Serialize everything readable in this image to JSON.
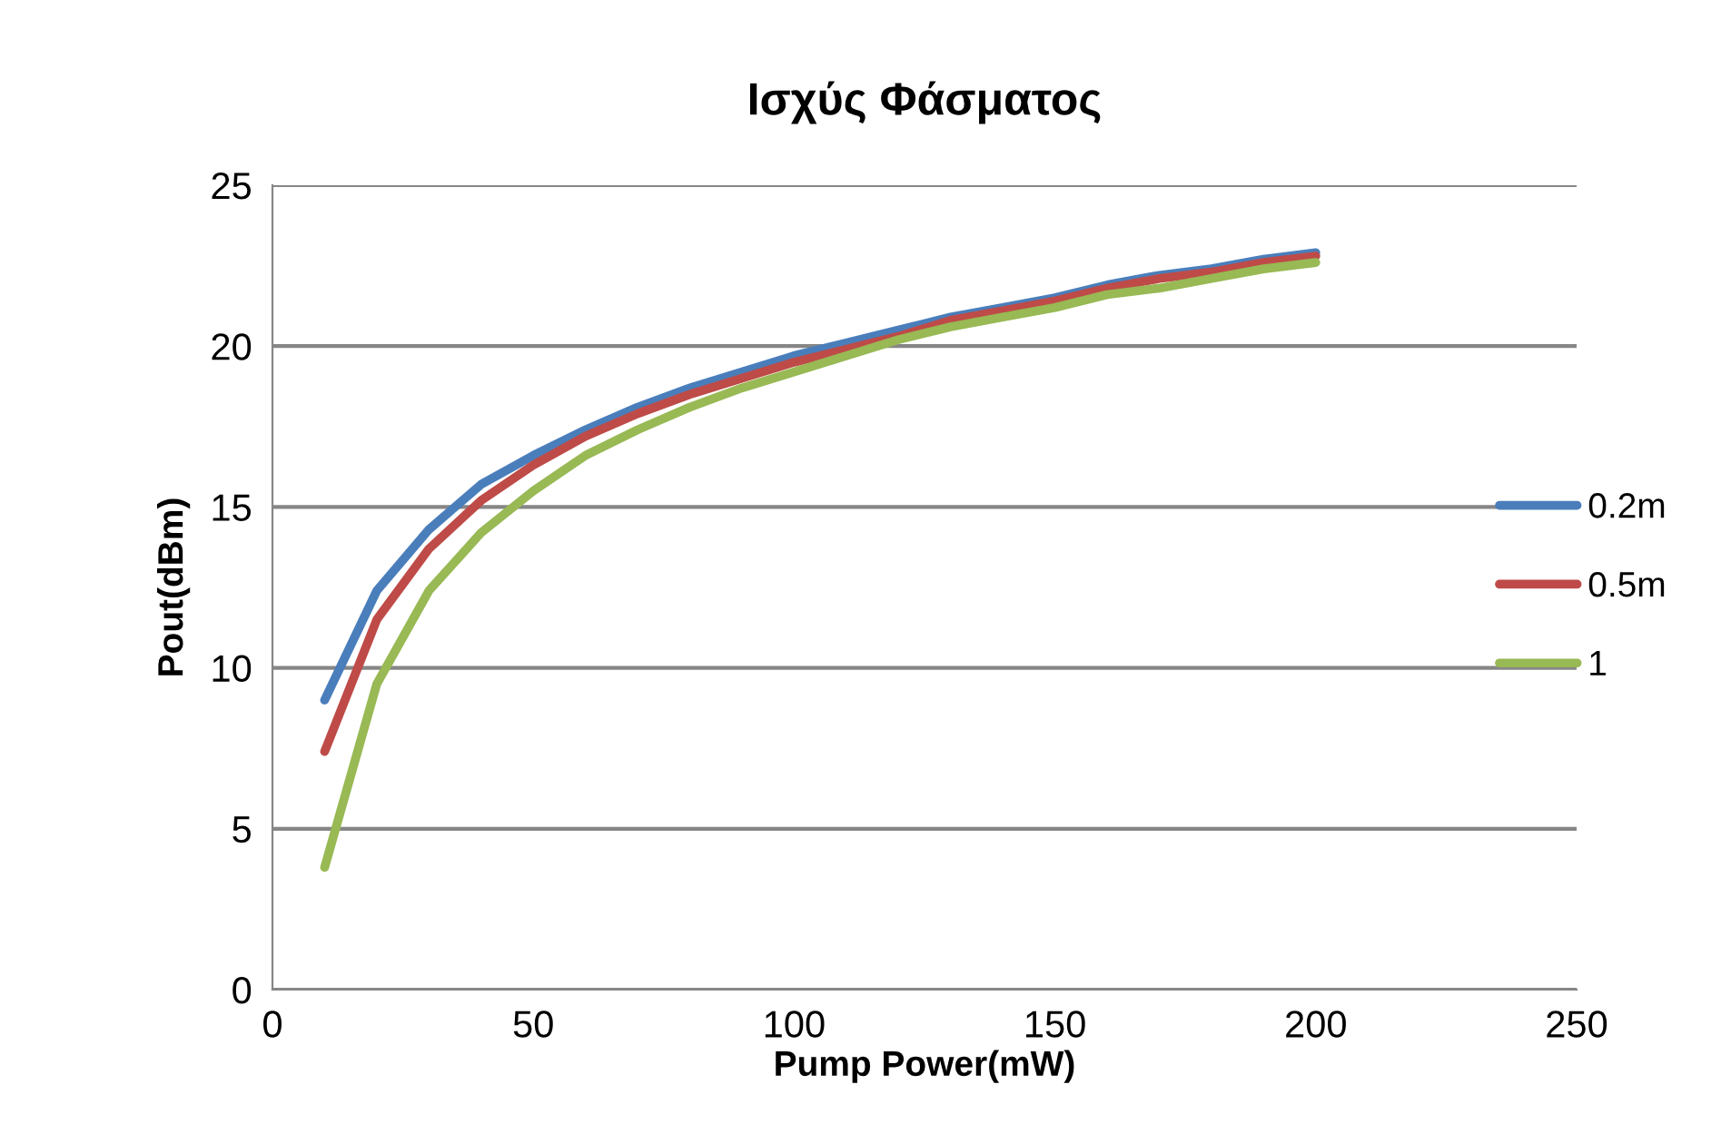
{
  "chart_data": {
    "type": "line",
    "title": "Ισχύς Φάσματος",
    "xlabel": "Pump Power(mW)",
    "ylabel": "Pout(dBm)",
    "x": [
      10,
      20,
      30,
      40,
      50,
      60,
      70,
      80,
      90,
      100,
      110,
      120,
      130,
      140,
      150,
      160,
      170,
      180,
      190,
      200
    ],
    "series": [
      {
        "name": "0.2m",
        "color": "#4a7ebb",
        "values": [
          9.0,
          12.4,
          14.3,
          15.7,
          16.6,
          17.4,
          18.1,
          18.7,
          19.2,
          19.7,
          20.1,
          20.5,
          20.9,
          21.2,
          21.5,
          21.9,
          22.2,
          22.4,
          22.7,
          22.9
        ]
      },
      {
        "name": "0.5m",
        "color": "#be4b48",
        "values": [
          7.4,
          11.5,
          13.7,
          15.2,
          16.3,
          17.2,
          17.9,
          18.5,
          19.0,
          19.5,
          19.9,
          20.3,
          20.8,
          21.1,
          21.4,
          21.8,
          22.1,
          22.3,
          22.6,
          22.8
        ]
      },
      {
        "name": "1",
        "color": "#98b954",
        "values": [
          3.8,
          9.5,
          12.4,
          14.2,
          15.5,
          16.6,
          17.4,
          18.1,
          18.7,
          19.2,
          19.7,
          20.2,
          20.6,
          20.9,
          21.2,
          21.6,
          21.8,
          22.1,
          22.4,
          22.6
        ]
      }
    ],
    "xlim": [
      0,
      250
    ],
    "xticks": [
      0,
      50,
      100,
      150,
      200,
      250
    ],
    "ylim": [
      0,
      25
    ],
    "yticks": [
      0,
      5,
      10,
      15,
      20,
      25
    ],
    "grid": "y",
    "legend": "right",
    "marker": "none",
    "line_style": "solid"
  }
}
